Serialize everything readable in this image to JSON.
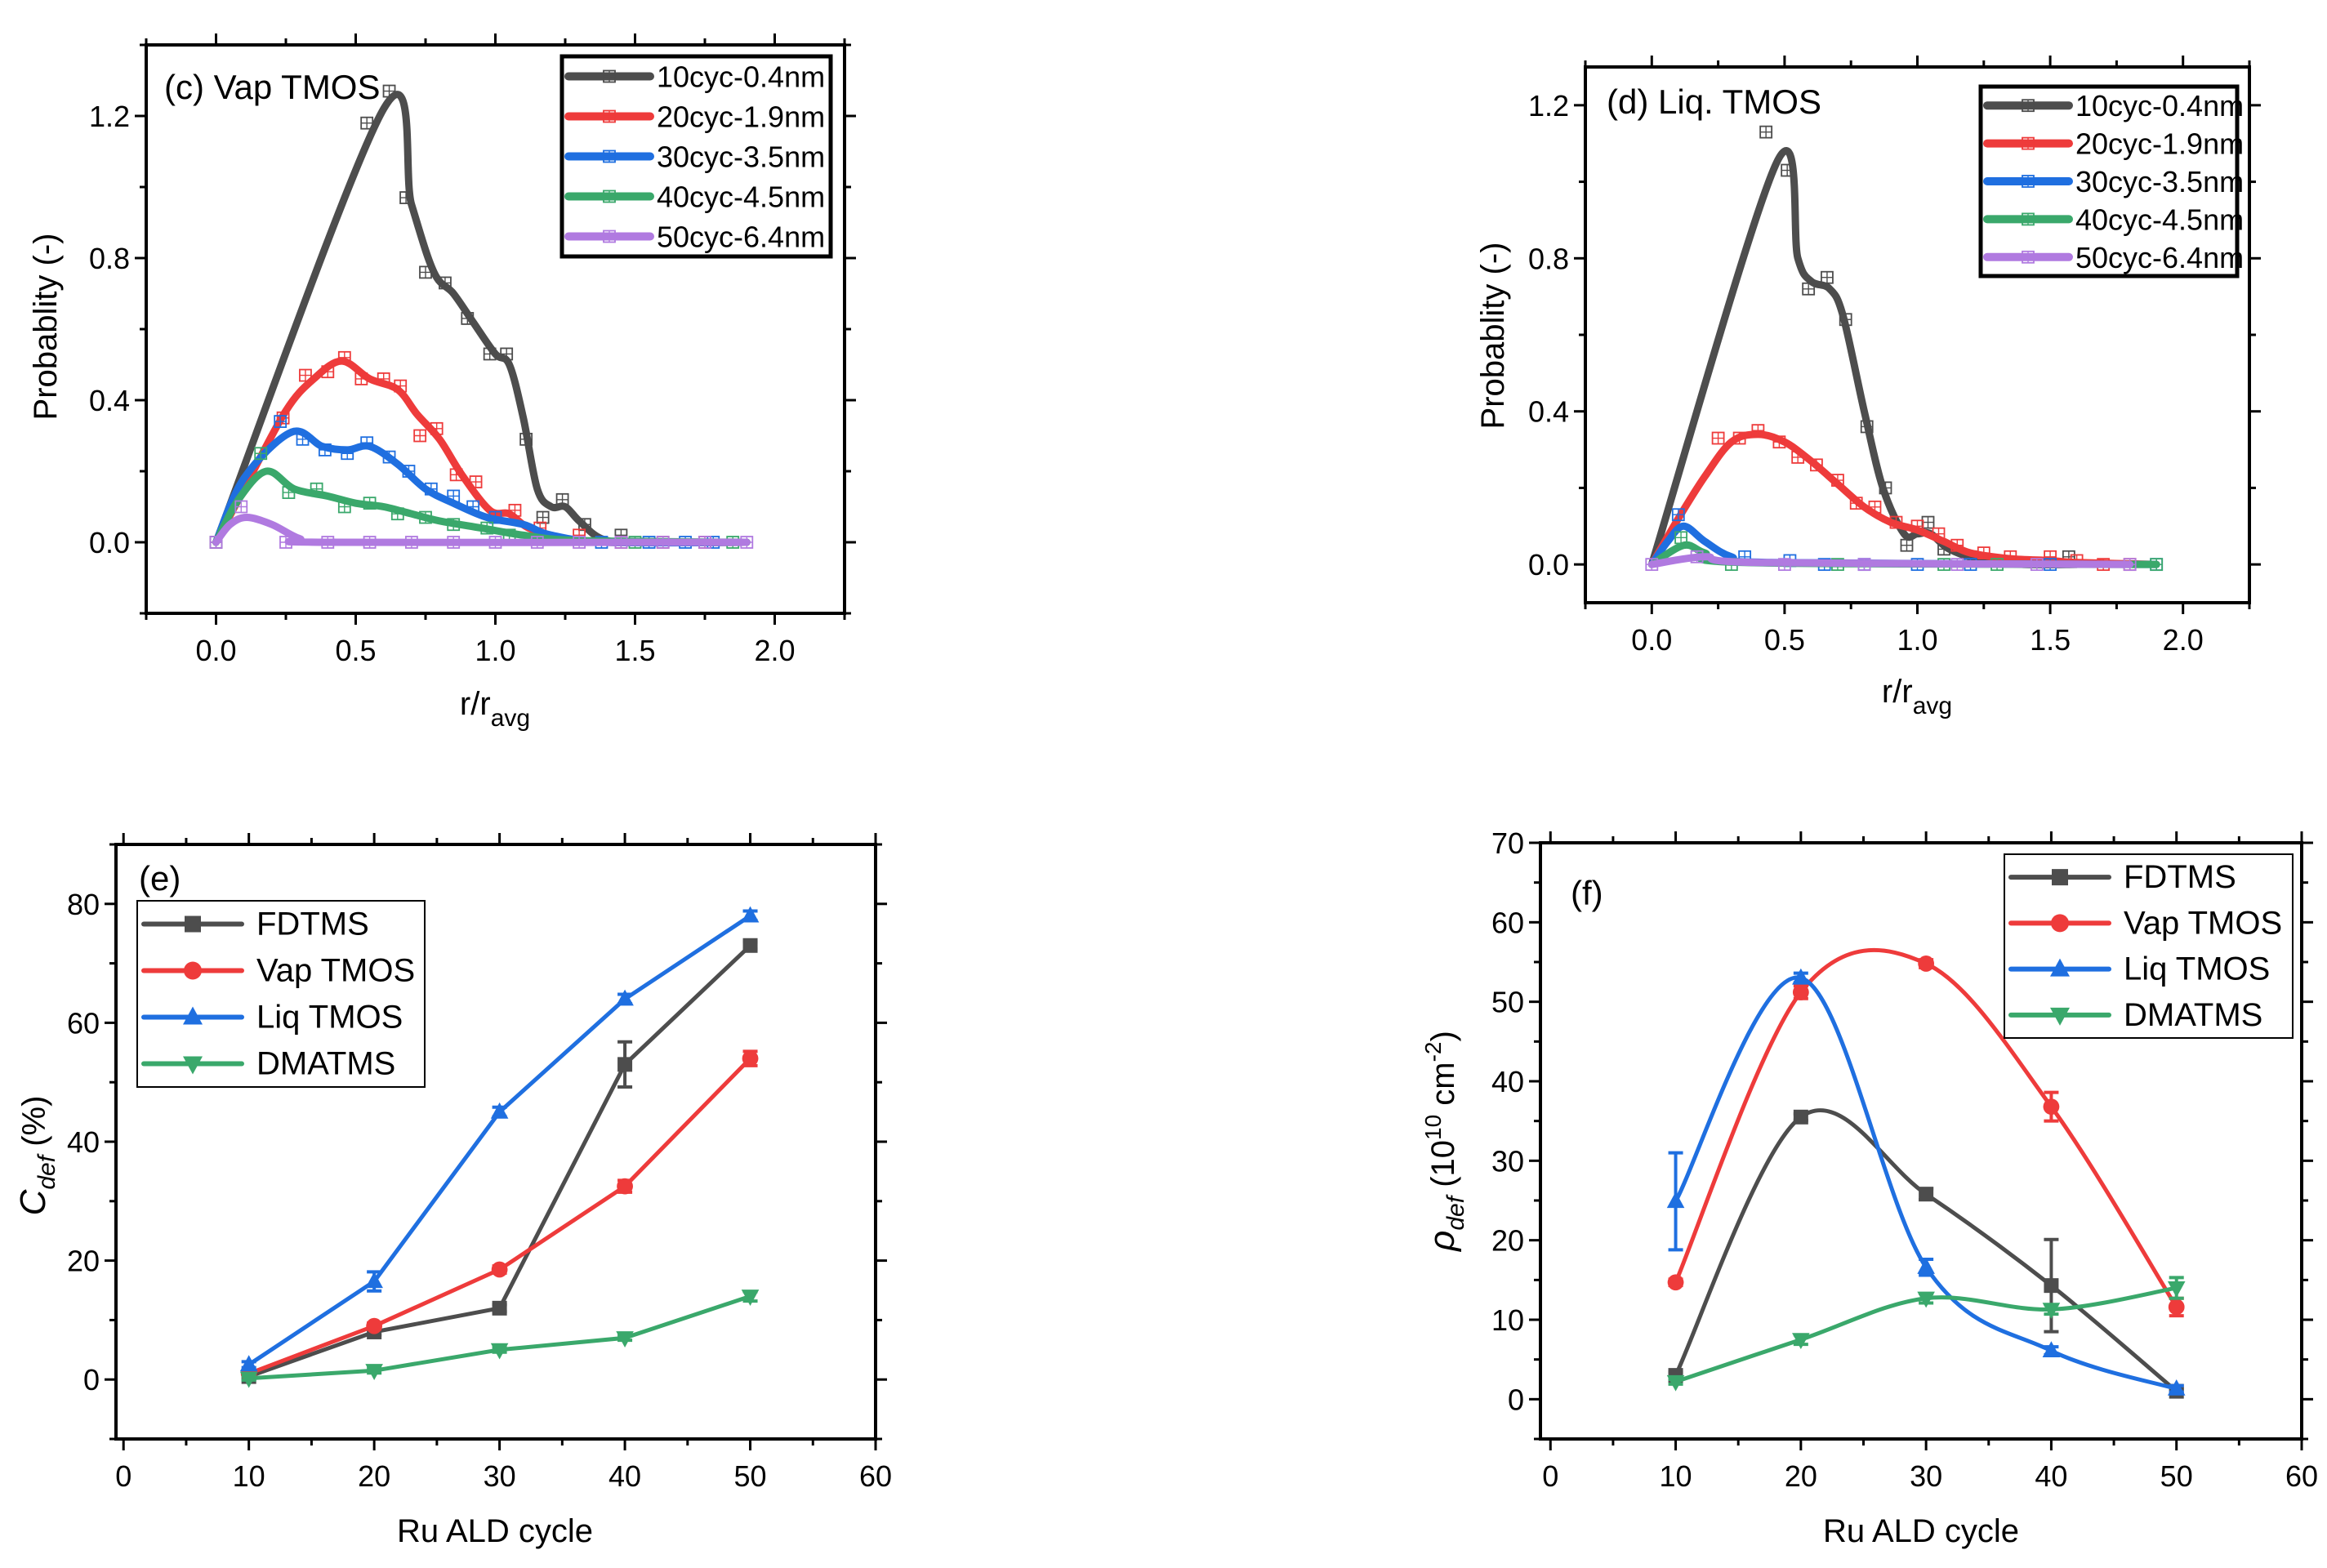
{
  "chart_data": [
    {
      "type": "line",
      "panel_label": "(c) Vap TMOS",
      "xlabel": {
        "main": "r/r",
        "sub": "avg"
      },
      "ylabel": {
        "main": "Probablity (-)"
      },
      "xlim": [
        -0.25,
        2.25
      ],
      "ylim": [
        -0.2,
        1.4
      ],
      "xticks": {
        "values": [
          0,
          0.5,
          1.0,
          1.5,
          2.0
        ],
        "labels": [
          "0.0",
          "0.5",
          "1.0",
          "1.5",
          "2.0"
        ],
        "minor_step": 0.25
      },
      "yticks": {
        "values": [
          0,
          0.4,
          0.8,
          1.2
        ],
        "labels": [
          "0.0",
          "0.4",
          "0.8",
          "1.2"
        ],
        "minor_step": 0.2
      },
      "legend_position": "top-right",
      "series": [
        {
          "name": "10cyc-0.4nm",
          "color": "#4d4d4d",
          "marker": "square-plus",
          "curve": {
            "x": [
              0,
              0.6,
              0.7,
              0.78,
              0.85,
              0.92,
              1.0,
              1.05,
              1.1,
              1.15,
              1.2,
              1.25,
              1.3,
              1.38,
              1.5,
              1.9
            ],
            "y": [
              0,
              1.22,
              0.95,
              0.76,
              0.7,
              0.62,
              0.53,
              0.5,
              0.35,
              0.15,
              0.1,
              0.1,
              0.06,
              0.01,
              0,
              0
            ]
          },
          "points": {
            "x": [
              0,
              0.54,
              0.62,
              0.68,
              0.75,
              0.82,
              0.9,
              0.98,
              1.04,
              1.11,
              1.17,
              1.24,
              1.32,
              1.45
            ],
            "y": [
              0,
              1.18,
              1.27,
              0.97,
              0.76,
              0.73,
              0.63,
              0.53,
              0.53,
              0.29,
              0.07,
              0.12,
              0.05,
              0.02
            ]
          }
        },
        {
          "name": "20cyc-1.9nm",
          "color": "#ee3b3b",
          "marker": "square-plus",
          "curve": {
            "x": [
              0,
              0.1,
              0.25,
              0.35,
              0.45,
              0.55,
              0.65,
              0.72,
              0.8,
              0.88,
              0.98,
              1.05,
              1.12,
              1.25,
              1.4,
              1.9
            ],
            "y": [
              0,
              0.15,
              0.37,
              0.46,
              0.51,
              0.46,
              0.43,
              0.36,
              0.29,
              0.19,
              0.09,
              0.08,
              0.04,
              0.01,
              0,
              0
            ]
          },
          "points": {
            "x": [
              0.24,
              0.32,
              0.4,
              0.46,
              0.52,
              0.6,
              0.66,
              0.73,
              0.79,
              0.86,
              0.93,
              1.07,
              1.16,
              1.3,
              1.45,
              1.6,
              1.75
            ],
            "y": [
              0.35,
              0.47,
              0.48,
              0.52,
              0.46,
              0.46,
              0.44,
              0.3,
              0.32,
              0.19,
              0.17,
              0.09,
              0.04,
              0.02,
              0,
              0,
              0
            ]
          }
        },
        {
          "name": "30cyc-3.5nm",
          "color": "#1f6fe0",
          "marker": "square-plus",
          "curve": {
            "x": [
              0,
              0.1,
              0.27,
              0.38,
              0.47,
              0.55,
              0.65,
              0.75,
              0.85,
              0.97,
              1.1,
              1.2,
              1.4,
              1.9
            ],
            "y": [
              0,
              0.18,
              0.31,
              0.27,
              0.26,
              0.27,
              0.22,
              0.15,
              0.11,
              0.07,
              0.05,
              0.02,
              0,
              0
            ]
          },
          "points": {
            "x": [
              0.23,
              0.31,
              0.39,
              0.47,
              0.54,
              0.62,
              0.69,
              0.77,
              0.85,
              0.92,
              1.0,
              1.38,
              1.55,
              1.68,
              1.78
            ],
            "y": [
              0.34,
              0.29,
              0.26,
              0.25,
              0.28,
              0.24,
              0.2,
              0.15,
              0.13,
              0.1,
              0.07,
              0,
              0,
              0,
              0
            ]
          }
        },
        {
          "name": "40cyc-4.5nm",
          "color": "#3aa86b",
          "marker": "square-plus",
          "curve": {
            "x": [
              0,
              0.08,
              0.18,
              0.28,
              0.4,
              0.5,
              0.6,
              0.7,
              0.8,
              0.95,
              1.1,
              1.3,
              1.9
            ],
            "y": [
              0,
              0.12,
              0.2,
              0.15,
              0.13,
              0.11,
              0.1,
              0.08,
              0.06,
              0.04,
              0.02,
              0.005,
              0
            ]
          },
          "points": {
            "x": [
              0.16,
              0.26,
              0.36,
              0.46,
              0.55,
              0.65,
              0.75,
              0.85,
              0.97,
              1.05,
              1.5,
              1.85
            ],
            "y": [
              0.25,
              0.14,
              0.15,
              0.1,
              0.11,
              0.08,
              0.07,
              0.05,
              0.04,
              0.02,
              0,
              0
            ]
          }
        },
        {
          "name": "50cyc-6.4nm",
          "color": "#b07ae0",
          "marker": "square-plus",
          "curve": {
            "x": [
              0,
              0.05,
              0.11,
              0.2,
              0.3,
              0.4,
              1.9
            ],
            "y": [
              0,
              0.05,
              0.07,
              0.05,
              0.01,
              0,
              0
            ]
          },
          "points": {
            "x": [
              0,
              0.09,
              0.25,
              0.4,
              0.55,
              0.7,
              0.85,
              1.0,
              1.15,
              1.3,
              1.45,
              1.6,
              1.75,
              1.9
            ],
            "y": [
              0,
              0.1,
              0,
              0,
              0,
              0,
              0,
              0,
              0,
              0,
              0,
              0,
              0,
              0
            ]
          }
        }
      ]
    },
    {
      "type": "line",
      "panel_label": "(d) Liq. TMOS",
      "xlabel": {
        "main": "r/r",
        "sub": "avg"
      },
      "ylabel": {
        "main": "Probablity (-)"
      },
      "xlim": [
        -0.25,
        2.25
      ],
      "ylim": [
        -0.1,
        1.3
      ],
      "xticks": {
        "values": [
          0,
          0.5,
          1.0,
          1.5,
          2.0
        ],
        "labels": [
          "0.0",
          "0.5",
          "1.0",
          "1.5",
          "2.0"
        ],
        "minor_step": 0.25
      },
      "yticks": {
        "values": [
          0,
          0.4,
          0.8,
          1.2
        ],
        "labels": [
          "0.0",
          "0.4",
          "0.8",
          "1.2"
        ],
        "minor_step": 0.2
      },
      "legend_position": "top-right",
      "series": [
        {
          "name": "10cyc-0.4nm",
          "color": "#4d4d4d",
          "marker": "square-plus",
          "curve": {
            "x": [
              0,
              0.47,
              0.55,
              0.6,
              0.67,
              0.72,
              0.8,
              0.87,
              0.95,
              1.0,
              1.05,
              1.12,
              1.25,
              1.4,
              1.6
            ],
            "y": [
              0,
              1.05,
              0.8,
              0.74,
              0.72,
              0.65,
              0.4,
              0.2,
              0.08,
              0.08,
              0.08,
              0.04,
              0.01,
              0,
              0
            ]
          },
          "points": {
            "x": [
              0.43,
              0.51,
              0.59,
              0.66,
              0.73,
              0.81,
              0.88,
              0.96,
              1.04,
              1.1,
              1.2,
              1.57
            ],
            "y": [
              1.13,
              1.03,
              0.72,
              0.75,
              0.64,
              0.36,
              0.2,
              0.05,
              0.11,
              0.04,
              0.02,
              0.02
            ]
          }
        },
        {
          "name": "20cyc-1.9nm",
          "color": "#ee3b3b",
          "marker": "square-plus",
          "curve": {
            "x": [
              0,
              0.1,
              0.2,
              0.3,
              0.4,
              0.5,
              0.6,
              0.7,
              0.8,
              0.9,
              1.0,
              1.1,
              1.2,
              1.35,
              1.5,
              1.6,
              1.9
            ],
            "y": [
              0,
              0.12,
              0.23,
              0.32,
              0.34,
              0.32,
              0.27,
              0.21,
              0.15,
              0.11,
              0.09,
              0.06,
              0.03,
              0.015,
              0.01,
              0.005,
              0
            ]
          },
          "points": {
            "x": [
              0.25,
              0.33,
              0.4,
              0.48,
              0.55,
              0.62,
              0.7,
              0.77,
              0.84,
              0.92,
              1.0,
              1.08,
              1.15,
              1.25,
              1.35,
              1.5,
              1.6,
              1.7,
              1.8
            ],
            "y": [
              0.33,
              0.33,
              0.35,
              0.32,
              0.28,
              0.26,
              0.22,
              0.16,
              0.15,
              0.11,
              0.1,
              0.08,
              0.05,
              0.03,
              0.02,
              0.02,
              0.01,
              0,
              0
            ]
          }
        },
        {
          "name": "30cyc-3.5nm",
          "color": "#1f6fe0",
          "marker": "square-plus",
          "curve": {
            "x": [
              0,
              0.06,
              0.12,
              0.2,
              0.3,
              0.45,
              1.9
            ],
            "y": [
              0,
              0.06,
              0.1,
              0.06,
              0.02,
              0.005,
              0
            ]
          },
          "points": {
            "x": [
              0.1,
              0.35,
              0.52,
              0.65,
              0.8,
              1.0,
              1.2,
              1.5,
              1.9
            ],
            "y": [
              0.13,
              0.02,
              0.01,
              0,
              0,
              0,
              0,
              0,
              0
            ]
          }
        },
        {
          "name": "40cyc-4.5nm",
          "color": "#3aa86b",
          "marker": "square-plus",
          "curve": {
            "x": [
              0,
              0.12,
              0.2,
              0.35,
              1.9
            ],
            "y": [
              0,
              0.05,
              0.03,
              0.005,
              0
            ]
          },
          "points": {
            "x": [
              0.11,
              0.3,
              0.7,
              1.1,
              1.3,
              1.9
            ],
            "y": [
              0.07,
              0,
              0,
              0,
              0,
              0
            ]
          }
        },
        {
          "name": "50cyc-6.4nm",
          "color": "#b07ae0",
          "marker": "square-plus",
          "curve": {
            "x": [
              0,
              0.2,
              0.4,
              1.8
            ],
            "y": [
              0,
              0.02,
              0.005,
              0
            ]
          },
          "points": {
            "x": [
              0,
              0.17,
              0.5,
              0.8,
              1.15,
              1.45,
              1.8
            ],
            "y": [
              0,
              0.02,
              0,
              0,
              0,
              0,
              0
            ]
          }
        }
      ]
    },
    {
      "type": "line",
      "panel_label": "(e)",
      "xlabel": {
        "main": "Ru ALD cycle"
      },
      "ylabel": {
        "main": "C",
        "sub": "def",
        "rest": " (%)"
      },
      "xlim": [
        -0.6,
        60
      ],
      "ylim": [
        -10,
        90
      ],
      "xticks": {
        "values": [
          0,
          10,
          20,
          30,
          40,
          50,
          60
        ],
        "labels": [
          "0",
          "10",
          "20",
          "30",
          "40",
          "50",
          "60"
        ],
        "minor_step": 5
      },
      "yticks": {
        "values": [
          0,
          20,
          40,
          60,
          80
        ],
        "labels": [
          "0",
          "20",
          "40",
          "60",
          "80"
        ],
        "minor_step": 10
      },
      "legend_position": "top-left",
      "smooth": false,
      "series": [
        {
          "name": "FDTMS",
          "color": "#4d4d4d",
          "marker": "square",
          "x": [
            10,
            20,
            30,
            40,
            50
          ],
          "y": [
            0.5,
            8,
            12,
            53,
            73
          ],
          "yerr": [
            0.3,
            0.5,
            0.6,
            3.8,
            0.6
          ]
        },
        {
          "name": "Vap TMOS",
          "color": "#ee3b3b",
          "marker": "circle",
          "x": [
            10,
            20,
            30,
            40,
            50
          ],
          "y": [
            1,
            9,
            18.5,
            32.5,
            54
          ],
          "yerr": [
            0.3,
            0.5,
            0.6,
            1,
            1.2
          ]
        },
        {
          "name": "Liq TMOS",
          "color": "#1f6fe0",
          "marker": "triangle-up",
          "x": [
            10,
            20,
            30,
            40,
            50
          ],
          "y": [
            2.5,
            16.5,
            45,
            64,
            78
          ],
          "yerr": [
            0.5,
            1.6,
            0.8,
            0.8,
            0.8
          ]
        },
        {
          "name": "DMATMS",
          "color": "#3aa86b",
          "marker": "triangle-down",
          "x": [
            10,
            20,
            30,
            40,
            50
          ],
          "y": [
            0.2,
            1.5,
            5,
            7,
            14
          ],
          "yerr": [
            0.3,
            0.4,
            0.4,
            0.4,
            0.8
          ]
        }
      ]
    },
    {
      "type": "line",
      "panel_label": "(f)",
      "xlabel": {
        "main": "Ru ALD cycle"
      },
      "ylabel": {
        "main": "ρ",
        "sub": "def",
        "rest": " (10",
        "sup1": "10",
        "rest2": " cm",
        "sup2": "-2",
        "rest3": ")"
      },
      "xlim": [
        -0.8,
        60
      ],
      "ylim": [
        -5,
        70
      ],
      "xticks": {
        "values": [
          0,
          10,
          20,
          30,
          40,
          50,
          60
        ],
        "labels": [
          "0",
          "10",
          "20",
          "30",
          "40",
          "50",
          "60"
        ],
        "minor_step": 5
      },
      "yticks": {
        "values": [
          0,
          10,
          20,
          30,
          40,
          50,
          60,
          70
        ],
        "labels": [
          "0",
          "10",
          "20",
          "30",
          "40",
          "50",
          "60",
          "70"
        ],
        "minor_step": 5
      },
      "legend_position": "top-right",
      "smooth": true,
      "series": [
        {
          "name": "FDTMS",
          "color": "#4d4d4d",
          "marker": "square",
          "x": [
            10,
            20,
            30,
            40,
            50
          ],
          "y": [
            3,
            35.5,
            25.8,
            14.3,
            1
          ],
          "yerr": [
            0.4,
            0.4,
            0.7,
            5.8,
            0.3
          ]
        },
        {
          "name": "Vap TMOS",
          "color": "#ee3b3b",
          "marker": "circle",
          "x": [
            10,
            20,
            30,
            40,
            50
          ],
          "y": [
            14.7,
            51.2,
            54.8,
            36.8,
            11.6
          ],
          "yerr": [
            0.4,
            0.8,
            0.5,
            1.8,
            1.1
          ]
        },
        {
          "name": "Liq TMOS",
          "color": "#1f6fe0",
          "marker": "triangle-up",
          "x": [
            10,
            20,
            30,
            40,
            50
          ],
          "y": [
            24.9,
            53,
            16.6,
            6.1,
            1.3
          ],
          "yerr": [
            6.1,
            0.6,
            1,
            0.5,
            0.4
          ]
        },
        {
          "name": "DMATMS",
          "color": "#3aa86b",
          "marker": "triangle-down",
          "x": [
            10,
            20,
            30,
            40,
            50
          ],
          "y": [
            2.2,
            7.5,
            12.7,
            11.3,
            14
          ],
          "yerr": [
            0.3,
            0.6,
            0.6,
            0.6,
            1.3
          ]
        }
      ]
    }
  ]
}
